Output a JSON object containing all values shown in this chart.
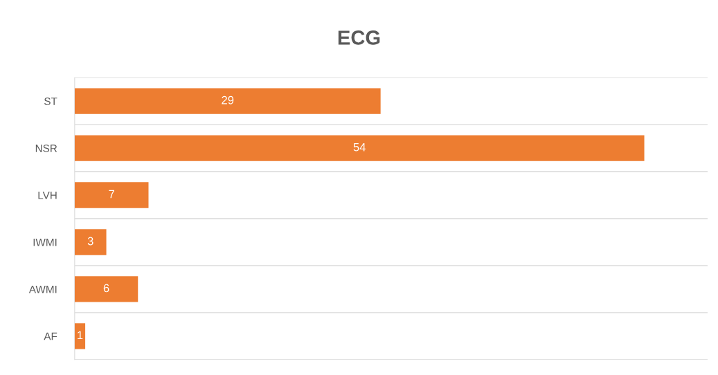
{
  "chart_data": {
    "type": "bar",
    "orientation": "horizontal",
    "title": "ECG",
    "categories": [
      "ST",
      "NSR",
      "LVH",
      "IWMI",
      "AWMI",
      "AF"
    ],
    "values": [
      29,
      54,
      7,
      3,
      6,
      1
    ],
    "color": "#ed7d31",
    "xlim": [
      0,
      60
    ],
    "data_labels": true,
    "grid": "y",
    "tick_labels": "y"
  }
}
